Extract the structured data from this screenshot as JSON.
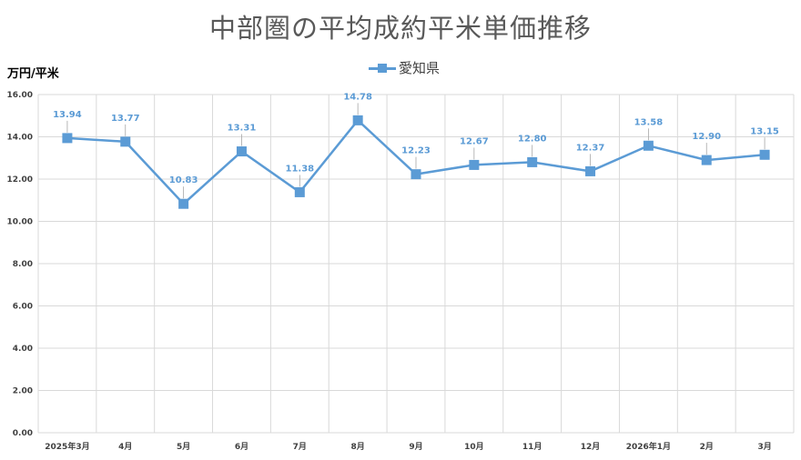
{
  "chart_data": {
    "type": "line",
    "title": "中部圏の平均成約平米単価推移",
    "ylabel": "万円/平米",
    "xlabel": "",
    "categories": [
      "2025年3月",
      "4月",
      "5月",
      "6月",
      "7月",
      "8月",
      "9月",
      "10月",
      "11月",
      "12月",
      "2026年1月",
      "2月",
      "3月"
    ],
    "series": [
      {
        "name": "愛知県",
        "values": [
          13.94,
          13.77,
          10.83,
          13.31,
          11.38,
          14.78,
          12.23,
          12.67,
          12.8,
          12.37,
          13.58,
          12.9,
          13.15
        ]
      }
    ],
    "data_labels": [
      "13.94",
      "13.77",
      "10.83",
      "13.31",
      "11.38",
      "14.78",
      "12.23",
      "12.67",
      "12.80",
      "12.37",
      "13.58",
      "12.90",
      "13.15"
    ],
    "ylim": [
      0,
      16
    ],
    "y_ticks": [
      "0.00",
      "2.00",
      "4.00",
      "6.00",
      "8.00",
      "10.00",
      "12.00",
      "14.00",
      "16.00"
    ],
    "grid": true,
    "legend_position": "top-center",
    "colors": {
      "series": "#5b9bd5",
      "grid": "#d9d9d9",
      "title": "#595959"
    }
  }
}
